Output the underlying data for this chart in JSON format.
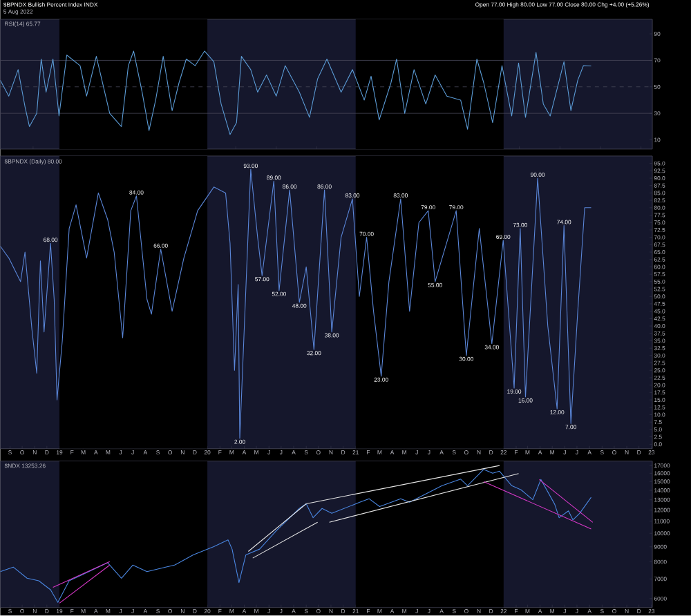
{
  "chart_data": [
    {
      "type": "line",
      "title": "$BPNDX Bullish Percent Index INDX",
      "subtitle": "5 Aug 2022",
      "annotations": [
        "Open 77.00  High 80.00  Low 77.00  Close 80.00  Chg +4.00 (+5.26%)",
        "RSI(14) 65.77"
      ],
      "xlim": [
        "2018-08-08",
        "2023-01-03"
      ],
      "ylim": [
        3,
        101
      ],
      "yticks": [
        10,
        30,
        50,
        70,
        90
      ],
      "tick_labels": "y",
      "bands": [
        {
          "axis": "x",
          "from": "2019-01-01",
          "to": "2020-01-01",
          "color": "#000000"
        },
        {
          "axis": "x",
          "from": "2021-01-01",
          "to": "2022-01-01",
          "color": "#000000"
        }
      ],
      "ref_lines": [
        {
          "axis": "y",
          "value": 70,
          "color": "#4a4a5c"
        },
        {
          "axis": "y",
          "value": 50,
          "color": "#4a4a5c",
          "line_style": "dashed"
        },
        {
          "axis": "y",
          "value": 30,
          "color": "#4a4a5c"
        }
      ],
      "series": [
        {
          "color": "#5b9bd5",
          "x": [
            "2018-08-08",
            "2018-08-29",
            "2018-09-21",
            "2018-10-08",
            "2018-10-19",
            "2018-11-06",
            "2018-11-17",
            "2018-11-29",
            "2018-12-16",
            "2018-12-31",
            "2019-01-19",
            "2019-02-21",
            "2019-03-09",
            "2019-04-02",
            "2019-05-05",
            "2019-06-03",
            "2019-06-20",
            "2019-07-03",
            "2019-07-24",
            "2019-08-10",
            "2019-08-27",
            "2019-09-14",
            "2019-10-06",
            "2019-10-23",
            "2019-11-10",
            "2019-12-02",
            "2019-12-25",
            "2020-01-17",
            "2020-02-04",
            "2020-02-26",
            "2020-03-13",
            "2020-03-25",
            "2020-04-17",
            "2020-05-04",
            "2020-05-26",
            "2020-06-19",
            "2020-07-11",
            "2020-08-15",
            "2020-09-09",
            "2020-09-29",
            "2020-10-22",
            "2020-11-26",
            "2020-12-24",
            "2021-01-22",
            "2021-02-08",
            "2021-02-28",
            "2021-03-29",
            "2021-04-12",
            "2021-05-02",
            "2021-05-25",
            "2021-06-23",
            "2021-07-16",
            "2021-08-14",
            "2021-09-17",
            "2021-10-04",
            "2021-10-27",
            "2021-11-13",
            "2021-12-05",
            "2021-12-28",
            "2022-01-21",
            "2022-02-07",
            "2022-02-24",
            "2022-03-22",
            "2022-04-09",
            "2022-04-26",
            "2022-05-30",
            "2022-06-16",
            "2022-07-03",
            "2022-07-17",
            "2022-08-05"
          ],
          "values": [
            55,
            43,
            63,
            35,
            20,
            30,
            71,
            46,
            71,
            28,
            74,
            66,
            43,
            73,
            30,
            20,
            66,
            77,
            46,
            17,
            41,
            73,
            32,
            53,
            71,
            66,
            77,
            69,
            37,
            14,
            23,
            73,
            63,
            46,
            59,
            43,
            66,
            46,
            27,
            56,
            71,
            46,
            63,
            40,
            58,
            25,
            53,
            71,
            30,
            63,
            37,
            59,
            43,
            40,
            18,
            71,
            53,
            23,
            66,
            28,
            68,
            27,
            76,
            37,
            28,
            69,
            32,
            55,
            66,
            65.77
          ]
        }
      ]
    },
    {
      "type": "line",
      "annotations": [
        "$BPNDX (Daily) 80.00",
        {
          "text": "68.00",
          "x": "2018-12-10",
          "y": 68
        },
        {
          "text": "84.00",
          "x": "2019-07-10",
          "y": 84
        },
        {
          "text": "66.00",
          "x": "2019-09-08",
          "y": 66
        },
        {
          "text": "2.00",
          "x": "2020-03-21",
          "y": 2
        },
        {
          "text": "93.00",
          "x": "2020-04-17",
          "y": 93
        },
        {
          "text": "57.00",
          "x": "2020-05-15",
          "y": 57
        },
        {
          "text": "89.00",
          "x": "2020-06-13",
          "y": 89
        },
        {
          "text": "52.00",
          "x": "2020-06-26",
          "y": 52
        },
        {
          "text": "86.00",
          "x": "2020-07-22",
          "y": 86
        },
        {
          "text": "48.00",
          "x": "2020-08-15",
          "y": 48
        },
        {
          "text": "32.00",
          "x": "2020-09-20",
          "y": 32
        },
        {
          "text": "86.00",
          "x": "2020-10-16",
          "y": 86
        },
        {
          "text": "38.00",
          "x": "2020-11-03",
          "y": 38
        },
        {
          "text": "83.00",
          "x": "2020-12-24",
          "y": 83
        },
        {
          "text": "70.00",
          "x": "2021-01-28",
          "y": 70
        },
        {
          "text": "23.00",
          "x": "2021-03-05",
          "y": 23
        },
        {
          "text": "83.00",
          "x": "2021-04-22",
          "y": 83
        },
        {
          "text": "79.00",
          "x": "2021-06-29",
          "y": 79
        },
        {
          "text": "55.00",
          "x": "2021-07-16",
          "y": 55
        },
        {
          "text": "79.00",
          "x": "2021-09-06",
          "y": 79
        },
        {
          "text": "30.00",
          "x": "2021-10-01",
          "y": 30
        },
        {
          "text": "34.00",
          "x": "2021-12-03",
          "y": 34
        },
        {
          "text": "69.00",
          "x": "2021-12-31",
          "y": 69
        },
        {
          "text": "19.00",
          "x": "2022-01-27",
          "y": 19
        },
        {
          "text": "73.00",
          "x": "2022-02-11",
          "y": 73
        },
        {
          "text": "16.00",
          "x": "2022-02-24",
          "y": 16
        },
        {
          "text": "90.00",
          "x": "2022-03-26",
          "y": 90
        },
        {
          "text": "12.00",
          "x": "2022-05-13",
          "y": 12
        },
        {
          "text": "74.00",
          "x": "2022-05-30",
          "y": 74
        },
        {
          "text": "7.00",
          "x": "2022-06-16",
          "y": 7
        }
      ],
      "xlim": [
        "2018-08-08",
        "2023-01-03"
      ],
      "ylim": [
        -1.5,
        97.5
      ],
      "xticks": [
        {
          "value": "2018-09-01",
          "label": "S"
        },
        {
          "value": "2018-10-01",
          "label": "O"
        },
        {
          "value": "2018-11-01",
          "label": "N"
        },
        {
          "value": "2018-12-01",
          "label": "D"
        },
        {
          "value": "2019-01-01",
          "label": "19"
        },
        {
          "value": "2019-02-01",
          "label": "F"
        },
        {
          "value": "2019-03-01",
          "label": "M"
        },
        {
          "value": "2019-04-01",
          "label": "A"
        },
        {
          "value": "2019-05-01",
          "label": "M"
        },
        {
          "value": "2019-06-01",
          "label": "J"
        },
        {
          "value": "2019-07-01",
          "label": "J"
        },
        {
          "value": "2019-08-01",
          "label": "A"
        },
        {
          "value": "2019-09-01",
          "label": "S"
        },
        {
          "value": "2019-10-01",
          "label": "O"
        },
        {
          "value": "2019-11-01",
          "label": "N"
        },
        {
          "value": "2019-12-01",
          "label": "D"
        },
        {
          "value": "2020-01-01",
          "label": "20"
        },
        {
          "value": "2020-02-01",
          "label": "F"
        },
        {
          "value": "2020-03-01",
          "label": "M"
        },
        {
          "value": "2020-04-01",
          "label": "A"
        },
        {
          "value": "2020-05-01",
          "label": "M"
        },
        {
          "value": "2020-06-01",
          "label": "J"
        },
        {
          "value": "2020-07-01",
          "label": "J"
        },
        {
          "value": "2020-08-01",
          "label": "A"
        },
        {
          "value": "2020-09-01",
          "label": "S"
        },
        {
          "value": "2020-10-01",
          "label": "O"
        },
        {
          "value": "2020-11-01",
          "label": "N"
        },
        {
          "value": "2020-12-01",
          "label": "D"
        },
        {
          "value": "2021-01-01",
          "label": "21"
        },
        {
          "value": "2021-02-01",
          "label": "F"
        },
        {
          "value": "2021-03-01",
          "label": "M"
        },
        {
          "value": "2021-04-01",
          "label": "A"
        },
        {
          "value": "2021-05-01",
          "label": "M"
        },
        {
          "value": "2021-06-01",
          "label": "J"
        },
        {
          "value": "2021-07-01",
          "label": "J"
        },
        {
          "value": "2021-08-01",
          "label": "A"
        },
        {
          "value": "2021-09-01",
          "label": "S"
        },
        {
          "value": "2021-10-01",
          "label": "O"
        },
        {
          "value": "2021-11-01",
          "label": "N"
        },
        {
          "value": "2021-12-01",
          "label": "D"
        },
        {
          "value": "2022-01-01",
          "label": "22"
        },
        {
          "value": "2022-02-01",
          "label": "F"
        },
        {
          "value": "2022-03-01",
          "label": "M"
        },
        {
          "value": "2022-04-01",
          "label": "A"
        },
        {
          "value": "2022-05-01",
          "label": "M"
        },
        {
          "value": "2022-06-01",
          "label": "J"
        },
        {
          "value": "2022-07-01",
          "label": "J"
        },
        {
          "value": "2022-08-01",
          "label": "A"
        },
        {
          "value": "2022-09-01",
          "label": "S"
        },
        {
          "value": "2022-10-01",
          "label": "O"
        },
        {
          "value": "2022-11-01",
          "label": "N"
        },
        {
          "value": "2022-12-01",
          "label": "D"
        },
        {
          "value": "2023-01-01",
          "label": "23"
        }
      ],
      "yticks": [
        {
          "value": 0,
          "label": "0.0"
        },
        {
          "value": 2.5,
          "label": "2.5"
        },
        {
          "value": 5,
          "label": "5.0"
        },
        {
          "value": 7.5,
          "label": "7.5"
        },
        {
          "value": 10,
          "label": "10.0"
        },
        {
          "value": 12.5,
          "label": "12.5"
        },
        {
          "value": 15,
          "label": "15.0"
        },
        {
          "value": 17.5,
          "label": "17.5"
        },
        {
          "value": 20,
          "label": "20.0"
        },
        {
          "value": 22.5,
          "label": "22.5"
        },
        {
          "value": 25,
          "label": "25.0"
        },
        {
          "value": 27.5,
          "label": "27.5"
        },
        {
          "value": 30,
          "label": "30.0"
        },
        {
          "value": 32.5,
          "label": "32.5"
        },
        {
          "value": 35,
          "label": "35.0"
        },
        {
          "value": 37.5,
          "label": "37.5"
        },
        {
          "value": 40,
          "label": "40.0"
        },
        {
          "value": 42.5,
          "label": "42.5"
        },
        {
          "value": 45,
          "label": "45.0"
        },
        {
          "value": 47.5,
          "label": "47.5"
        },
        {
          "value": 50,
          "label": "50.0"
        },
        {
          "value": 52.5,
          "label": "52.5"
        },
        {
          "value": 55,
          "label": "55.0"
        },
        {
          "value": 57.5,
          "label": "57.5"
        },
        {
          "value": 60,
          "label": "60.0"
        },
        {
          "value": 62.5,
          "label": "62.5"
        },
        {
          "value": 65,
          "label": "65.0"
        },
        {
          "value": 67.5,
          "label": "67.5"
        },
        {
          "value": 70,
          "label": "70.0"
        },
        {
          "value": 72.5,
          "label": "72.5"
        },
        {
          "value": 75,
          "label": "75.0"
        },
        {
          "value": 77.5,
          "label": "77.5"
        },
        {
          "value": 80,
          "label": "80.0"
        },
        {
          "value": 82.5,
          "label": "82.5"
        },
        {
          "value": 85,
          "label": "85.0"
        },
        {
          "value": 87.5,
          "label": "87.5"
        },
        {
          "value": 90,
          "label": "90.0"
        },
        {
          "value": 92.5,
          "label": "92.5"
        },
        {
          "value": 95,
          "label": "95.0"
        }
      ],
      "bands": [
        {
          "axis": "x",
          "from": "2019-01-01",
          "to": "2020-01-01",
          "color": "#000000"
        },
        {
          "axis": "x",
          "from": "2021-01-01",
          "to": "2022-01-01",
          "color": "#000000"
        }
      ],
      "series": [
        {
          "color": "#5a86d8",
          "x": [
            "2018-08-08",
            "2018-08-29",
            "2018-09-27",
            "2018-10-08",
            "2018-10-25",
            "2018-11-06",
            "2018-11-15",
            "2018-11-24",
            "2018-12-10",
            "2018-12-19",
            "2018-12-26",
            "2019-01-08",
            "2019-01-25",
            "2019-02-11",
            "2019-03-09",
            "2019-04-07",
            "2019-04-30",
            "2019-05-16",
            "2019-06-06",
            "2019-06-26",
            "2019-07-10",
            "2019-08-05",
            "2019-08-16",
            "2019-09-08",
            "2019-10-06",
            "2019-11-04",
            "2019-12-08",
            "2020-01-17",
            "2020-02-15",
            "2020-02-26",
            "2020-03-08",
            "2020-03-17",
            "2020-03-21",
            "2020-04-17",
            "2020-05-04",
            "2020-05-15",
            "2020-06-13",
            "2020-06-26",
            "2020-07-22",
            "2020-08-15",
            "2020-09-01",
            "2020-09-20",
            "2020-10-16",
            "2020-11-03",
            "2020-11-26",
            "2020-12-24",
            "2021-01-10",
            "2021-01-28",
            "2021-02-14",
            "2021-03-05",
            "2021-03-24",
            "2021-04-22",
            "2021-05-14",
            "2021-06-06",
            "2021-06-29",
            "2021-07-16",
            "2021-09-06",
            "2021-10-01",
            "2021-11-02",
            "2021-12-03",
            "2021-12-31",
            "2022-01-27",
            "2022-02-11",
            "2022-02-24",
            "2022-03-26",
            "2022-04-20",
            "2022-05-13",
            "2022-05-30",
            "2022-06-16",
            "2022-07-03",
            "2022-07-20",
            "2022-08-05"
          ],
          "values": [
            67,
            63,
            55,
            65,
            39,
            24,
            62,
            38,
            68,
            49,
            15,
            35,
            73,
            81,
            63,
            85,
            76,
            65,
            36,
            79,
            84,
            49,
            44,
            66,
            45,
            63,
            79,
            87,
            85,
            68,
            25,
            54,
            2,
            93,
            70,
            57,
            89,
            52,
            86,
            48,
            60,
            32,
            86,
            38,
            70,
            83,
            50,
            70,
            45,
            23,
            55,
            83,
            45,
            75,
            79,
            55,
            79,
            30,
            73,
            34,
            69,
            19,
            73,
            16,
            90,
            40,
            12,
            74,
            7,
            45,
            80,
            80
          ]
        }
      ]
    },
    {
      "type": "line",
      "log": "y",
      "annotations": [
        "$NDX 13253.26"
      ],
      "xlim": [
        "2018-08-08",
        "2023-01-03"
      ],
      "ylim": [
        5600,
        17600
      ],
      "xticks": [
        {
          "value": "2018-09-01",
          "label": "S"
        },
        {
          "value": "2018-10-01",
          "label": "O"
        },
        {
          "value": "2018-11-01",
          "label": "N"
        },
        {
          "value": "2018-12-01",
          "label": "D"
        },
        {
          "value": "2019-01-01",
          "label": "19"
        },
        {
          "value": "2019-02-01",
          "label": "F"
        },
        {
          "value": "2019-03-01",
          "label": "M"
        },
        {
          "value": "2019-04-01",
          "label": "A"
        },
        {
          "value": "2019-05-01",
          "label": "M"
        },
        {
          "value": "2019-06-01",
          "label": "J"
        },
        {
          "value": "2019-07-01",
          "label": "J"
        },
        {
          "value": "2019-08-01",
          "label": "A"
        },
        {
          "value": "2019-09-01",
          "label": "S"
        },
        {
          "value": "2019-10-01",
          "label": "O"
        },
        {
          "value": "2019-11-01",
          "label": "N"
        },
        {
          "value": "2019-12-01",
          "label": "D"
        },
        {
          "value": "2020-01-01",
          "label": "20"
        },
        {
          "value": "2020-02-01",
          "label": "F"
        },
        {
          "value": "2020-03-01",
          "label": "M"
        },
        {
          "value": "2020-04-01",
          "label": "A"
        },
        {
          "value": "2020-05-01",
          "label": "M"
        },
        {
          "value": "2020-06-01",
          "label": "J"
        },
        {
          "value": "2020-07-01",
          "label": "J"
        },
        {
          "value": "2020-08-01",
          "label": "A"
        },
        {
          "value": "2020-09-01",
          "label": "S"
        },
        {
          "value": "2020-10-01",
          "label": "O"
        },
        {
          "value": "2020-11-01",
          "label": "N"
        },
        {
          "value": "2020-12-01",
          "label": "D"
        },
        {
          "value": "2021-01-01",
          "label": "21"
        },
        {
          "value": "2021-02-01",
          "label": "F"
        },
        {
          "value": "2021-03-01",
          "label": "M"
        },
        {
          "value": "2021-04-01",
          "label": "A"
        },
        {
          "value": "2021-05-01",
          "label": "M"
        },
        {
          "value": "2021-06-01",
          "label": "J"
        },
        {
          "value": "2021-07-01",
          "label": "J"
        },
        {
          "value": "2021-08-01",
          "label": "A"
        },
        {
          "value": "2021-09-01",
          "label": "S"
        },
        {
          "value": "2021-10-01",
          "label": "O"
        },
        {
          "value": "2021-11-01",
          "label": "N"
        },
        {
          "value": "2021-12-01",
          "label": "D"
        },
        {
          "value": "2022-01-01",
          "label": "22"
        },
        {
          "value": "2022-02-01",
          "label": "F"
        },
        {
          "value": "2022-03-01",
          "label": "M"
        },
        {
          "value": "2022-04-01",
          "label": "A"
        },
        {
          "value": "2022-05-01",
          "label": "M"
        },
        {
          "value": "2022-06-01",
          "label": "J"
        },
        {
          "value": "2022-07-01",
          "label": "J"
        },
        {
          "value": "2022-08-01",
          "label": "A"
        },
        {
          "value": "2022-09-01",
          "label": "S"
        },
        {
          "value": "2022-10-01",
          "label": "O"
        },
        {
          "value": "2022-11-01",
          "label": "N"
        },
        {
          "value": "2022-12-01",
          "label": "D"
        },
        {
          "value": "2023-01-01",
          "label": "23"
        }
      ],
      "yticks": [
        6000,
        7000,
        8000,
        9000,
        10000,
        11000,
        12000,
        13000,
        14000,
        15000,
        16000,
        17000
      ],
      "bands": [
        {
          "axis": "x",
          "from": "2019-01-01",
          "to": "2020-01-01",
          "color": "#000000"
        },
        {
          "axis": "x",
          "from": "2021-01-01",
          "to": "2022-01-01",
          "color": "#000000"
        }
      ],
      "series": [
        {
          "color": "#4a86e0",
          "x": [
            "2018-08-08",
            "2018-09-09",
            "2018-10-13",
            "2018-11-11",
            "2018-12-10",
            "2018-12-28",
            "2019-01-25",
            "2019-02-28",
            "2019-04-30",
            "2019-06-03",
            "2019-07-01",
            "2019-08-05",
            "2019-09-20",
            "2019-10-12",
            "2019-11-27",
            "2020-01-17",
            "2020-02-21",
            "2020-03-02",
            "2020-03-19",
            "2020-04-05",
            "2020-05-09",
            "2020-06-19",
            "2020-08-15",
            "2020-09-01",
            "2020-09-18",
            "2020-10-10",
            "2020-11-03",
            "2021-01-11",
            "2021-02-03",
            "2021-03-01",
            "2021-04-22",
            "2021-05-14",
            "2021-08-02",
            "2021-09-17",
            "2021-10-04",
            "2021-11-13",
            "2021-12-05",
            "2021-12-22",
            "2022-01-21",
            "2022-02-13",
            "2022-03-14",
            "2022-04-03",
            "2022-05-07",
            "2022-05-18",
            "2022-06-10",
            "2022-06-21",
            "2022-07-08",
            "2022-08-05"
          ],
          "values": [
            7410,
            7680,
            7040,
            6900,
            6430,
            5830,
            6900,
            7250,
            7950,
            7040,
            7800,
            7410,
            7680,
            7800,
            8450,
            9010,
            9500,
            8840,
            6800,
            8450,
            8840,
            10200,
            12150,
            12600,
            11300,
            12150,
            11700,
            12750,
            13110,
            12330,
            13110,
            12750,
            14520,
            15280,
            14520,
            16500,
            16000,
            16260,
            14520,
            14060,
            13010,
            15240,
            12560,
            11300,
            11920,
            11110,
            11710,
            13253
          ]
        },
        {
          "color": "#d838c8",
          "x": [
            "2018-12-16",
            "2019-05-05"
          ],
          "values": [
            6550,
            8010
          ]
        },
        {
          "color": "#d838c8",
          "x": [
            "2019-01-01",
            "2019-05-05"
          ],
          "values": [
            5790,
            7800
          ]
        },
        {
          "color": "#e6e6e6",
          "x": [
            "2020-04-11",
            "2020-09-01"
          ],
          "values": [
            8680,
            12600
          ]
        },
        {
          "color": "#e6e6e6",
          "x": [
            "2020-04-22",
            "2020-09-29"
          ],
          "values": [
            8240,
            10910
          ]
        },
        {
          "color": "#e6e6e6",
          "x": [
            "2020-09-01",
            "2021-12-22"
          ],
          "values": [
            12600,
            17000
          ]
        },
        {
          "color": "#e6e6e6",
          "x": [
            "2020-10-28",
            "2022-02-07"
          ],
          "values": [
            10910,
            15960
          ]
        },
        {
          "color": "#d838c8",
          "x": [
            "2022-03-30",
            "2022-08-09"
          ],
          "values": [
            15240,
            10900
          ]
        },
        {
          "color": "#d838c8",
          "x": [
            "2021-11-13",
            "2022-08-05"
          ],
          "values": [
            14980,
            10350
          ]
        }
      ]
    }
  ]
}
